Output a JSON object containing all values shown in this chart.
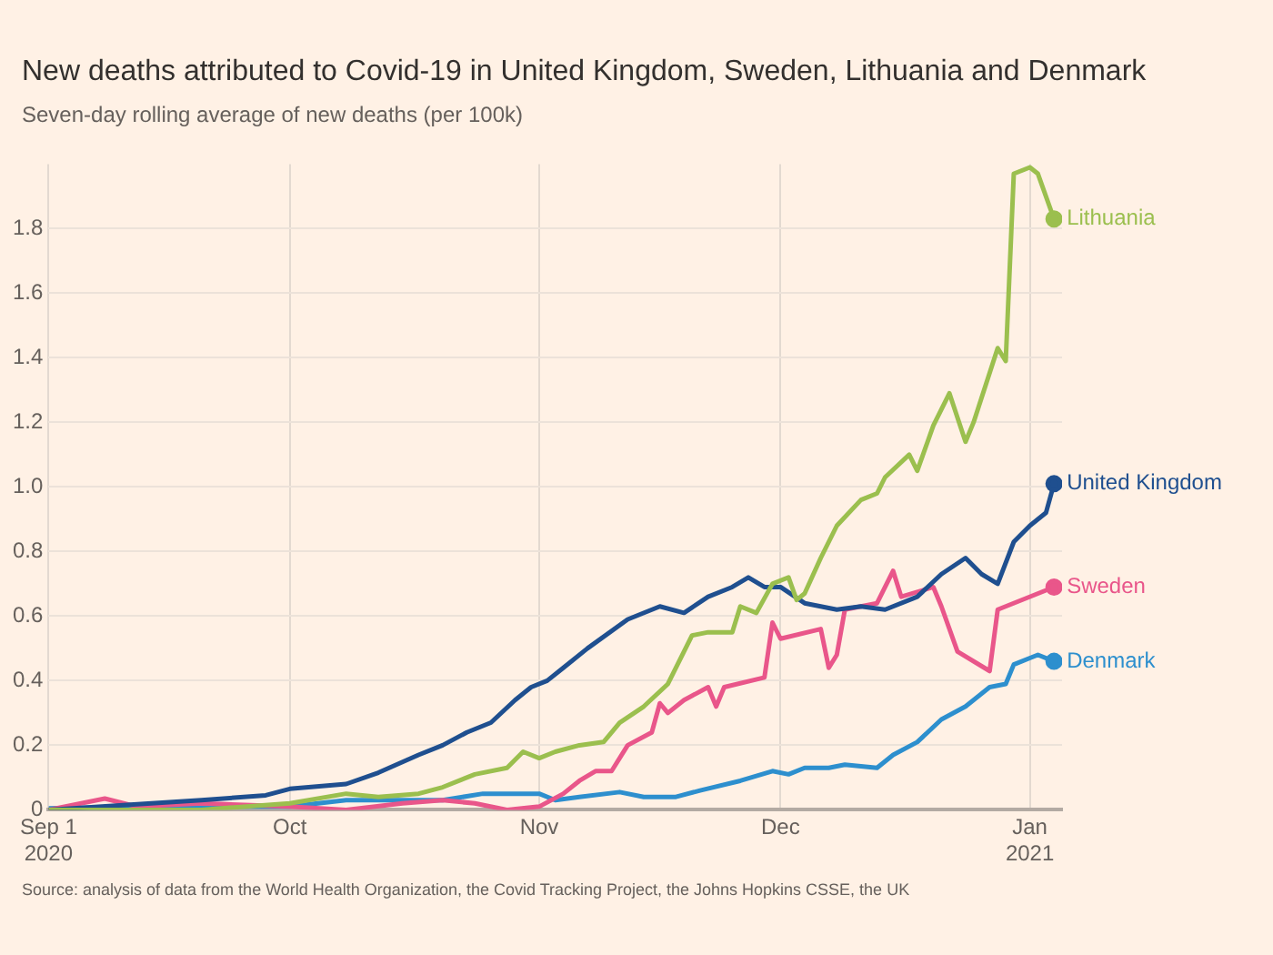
{
  "chart_data": {
    "type": "line",
    "title": "New deaths attributed to Covid-19 in United Kingdom, Sweden, Lithuania and Denmark",
    "subtitle": "Seven-day rolling average of new deaths (per 100k)",
    "annotations": [
      "Source: analysis of data from the World Health Organization, the Covid Tracking Project, the Johns Hopkins CSSE, the UK"
    ],
    "xlim": [
      "2020-09-01",
      "2021-01-05"
    ],
    "xticks": [
      {
        "value": "2020-09-01",
        "label": "Sep 1\n2020"
      },
      {
        "value": "2020-10-01",
        "label": "Oct"
      },
      {
        "value": "2020-11-01",
        "label": "Nov"
      },
      {
        "value": "2020-12-01",
        "label": "Dec"
      },
      {
        "value": "2021-01-01",
        "label": "Jan\n2021"
      }
    ],
    "ylim": [
      0,
      2
    ],
    "yticks": [
      0,
      {
        "value": 0.2,
        "label": "0.2"
      },
      {
        "value": 0.4,
        "label": "0.4"
      },
      {
        "value": 0.6,
        "label": "0.6"
      },
      {
        "value": 0.8,
        "label": "0.8"
      },
      {
        "value": 1,
        "label": "1.0"
      },
      {
        "value": 1.2,
        "label": "1.2"
      },
      {
        "value": 1.4,
        "label": "1.4"
      },
      {
        "value": 1.6,
        "label": "1.6"
      },
      {
        "value": 1.8,
        "label": "1.8"
      }
    ],
    "grid": true,
    "legend": false,
    "series": [
      {
        "name": "Lithuania",
        "color": "#9bbf4e",
        "x": [
          "2020-09-01",
          "2020-09-20",
          "2020-10-01",
          "2020-10-08",
          "2020-10-12",
          "2020-10-17",
          "2020-10-20",
          "2020-10-24",
          "2020-10-28",
          "2020-10-30",
          "2020-11-01",
          "2020-11-03",
          "2020-11-06",
          "2020-11-09",
          "2020-11-11",
          "2020-11-14",
          "2020-11-17",
          "2020-11-20",
          "2020-11-22",
          "2020-11-25",
          "2020-11-26",
          "2020-11-28",
          "2020-11-30",
          "2020-12-02",
          "2020-12-03",
          "2020-12-04",
          "2020-12-06",
          "2020-12-08",
          "2020-12-11",
          "2020-12-13",
          "2020-12-14",
          "2020-12-17",
          "2020-12-18",
          "2020-12-20",
          "2020-12-22",
          "2020-12-24",
          "2020-12-25",
          "2020-12-28",
          "2020-12-29",
          "2020-12-30",
          "2021-01-01",
          "2021-01-02",
          "2021-01-04"
        ],
        "values": [
          0,
          0,
          0.02,
          0.05,
          0.04,
          0.05,
          0.07,
          0.11,
          0.13,
          0.18,
          0.16,
          0.18,
          0.2,
          0.21,
          0.27,
          0.32,
          0.39,
          0.54,
          0.55,
          0.55,
          0.63,
          0.61,
          0.7,
          0.72,
          0.65,
          0.67,
          0.78,
          0.88,
          0.96,
          0.98,
          1.03,
          1.1,
          1.05,
          1.19,
          1.29,
          1.14,
          1.2,
          1.43,
          1.39,
          1.97,
          1.99,
          1.97,
          1.83
        ]
      },
      {
        "name": "United Kingdom",
        "color": "#1f4f8f",
        "x": [
          "2020-09-01",
          "2020-09-20",
          "2020-09-28",
          "2020-10-01",
          "2020-10-08",
          "2020-10-12",
          "2020-10-17",
          "2020-10-20",
          "2020-10-23",
          "2020-10-26",
          "2020-10-29",
          "2020-10-31",
          "2020-11-02",
          "2020-11-04",
          "2020-11-07",
          "2020-11-12",
          "2020-11-16",
          "2020-11-19",
          "2020-11-22",
          "2020-11-25",
          "2020-11-27",
          "2020-11-29",
          "2020-12-01",
          "2020-12-04",
          "2020-12-08",
          "2020-12-11",
          "2020-12-14",
          "2020-12-18",
          "2020-12-21",
          "2020-12-24",
          "2020-12-26",
          "2020-12-28",
          "2020-12-30",
          "2021-01-01",
          "2021-01-03",
          "2021-01-04"
        ],
        "values": [
          0,
          0.03,
          0.045,
          0.065,
          0.08,
          0.115,
          0.17,
          0.2,
          0.24,
          0.27,
          0.34,
          0.38,
          0.4,
          0.44,
          0.5,
          0.59,
          0.63,
          0.61,
          0.66,
          0.69,
          0.72,
          0.69,
          0.69,
          0.64,
          0.62,
          0.63,
          0.62,
          0.66,
          0.73,
          0.78,
          0.73,
          0.7,
          0.83,
          0.88,
          0.92,
          1.01
        ]
      },
      {
        "name": "Sweden",
        "color": "#e9568a",
        "x": [
          "2020-09-01",
          "2020-09-08",
          "2020-09-12",
          "2020-09-20",
          "2020-10-01",
          "2020-10-08",
          "2020-10-15",
          "2020-10-20",
          "2020-10-24",
          "2020-10-28",
          "2020-11-01",
          "2020-11-04",
          "2020-11-06",
          "2020-11-08",
          "2020-11-10",
          "2020-11-12",
          "2020-11-15",
          "2020-11-16",
          "2020-11-17",
          "2020-11-19",
          "2020-11-22",
          "2020-11-23",
          "2020-11-24",
          "2020-11-29",
          "2020-11-30",
          "2020-12-01",
          "2020-12-06",
          "2020-12-07",
          "2020-12-08",
          "2020-12-09",
          "2020-12-13",
          "2020-12-15",
          "2020-12-16",
          "2020-12-20",
          "2020-12-21",
          "2020-12-23",
          "2020-12-27",
          "2020-12-28",
          "2021-01-04"
        ],
        "values": [
          0,
          0.035,
          0.01,
          0.02,
          0.01,
          0,
          0.02,
          0.03,
          0.02,
          0,
          0.01,
          0.05,
          0.09,
          0.12,
          0.12,
          0.2,
          0.24,
          0.33,
          0.3,
          0.34,
          0.38,
          0.32,
          0.38,
          0.41,
          0.58,
          0.53,
          0.56,
          0.44,
          0.48,
          0.62,
          0.64,
          0.74,
          0.66,
          0.69,
          0.63,
          0.49,
          0.43,
          0.62,
          0.69
        ]
      },
      {
        "name": "Denmark",
        "color": "#2d8fce",
        "x": [
          "2020-09-01",
          "2020-09-15",
          "2020-10-01",
          "2020-10-08",
          "2020-10-20",
          "2020-10-25",
          "2020-11-01",
          "2020-11-03",
          "2020-11-06",
          "2020-11-11",
          "2020-11-14",
          "2020-11-18",
          "2020-11-21",
          "2020-11-26",
          "2020-11-30",
          "2020-12-02",
          "2020-12-04",
          "2020-12-07",
          "2020-12-09",
          "2020-12-13",
          "2020-12-15",
          "2020-12-18",
          "2020-12-21",
          "2020-12-24",
          "2020-12-27",
          "2020-12-29",
          "2020-12-30",
          "2021-01-01",
          "2021-01-02",
          "2021-01-04"
        ],
        "values": [
          0.005,
          0.01,
          0.01,
          0.03,
          0.03,
          0.05,
          0.05,
          0.03,
          0.04,
          0.055,
          0.04,
          0.04,
          0.06,
          0.09,
          0.12,
          0.11,
          0.13,
          0.13,
          0.14,
          0.13,
          0.17,
          0.21,
          0.28,
          0.32,
          0.38,
          0.39,
          0.45,
          0.47,
          0.48,
          0.46
        ]
      }
    ]
  }
}
